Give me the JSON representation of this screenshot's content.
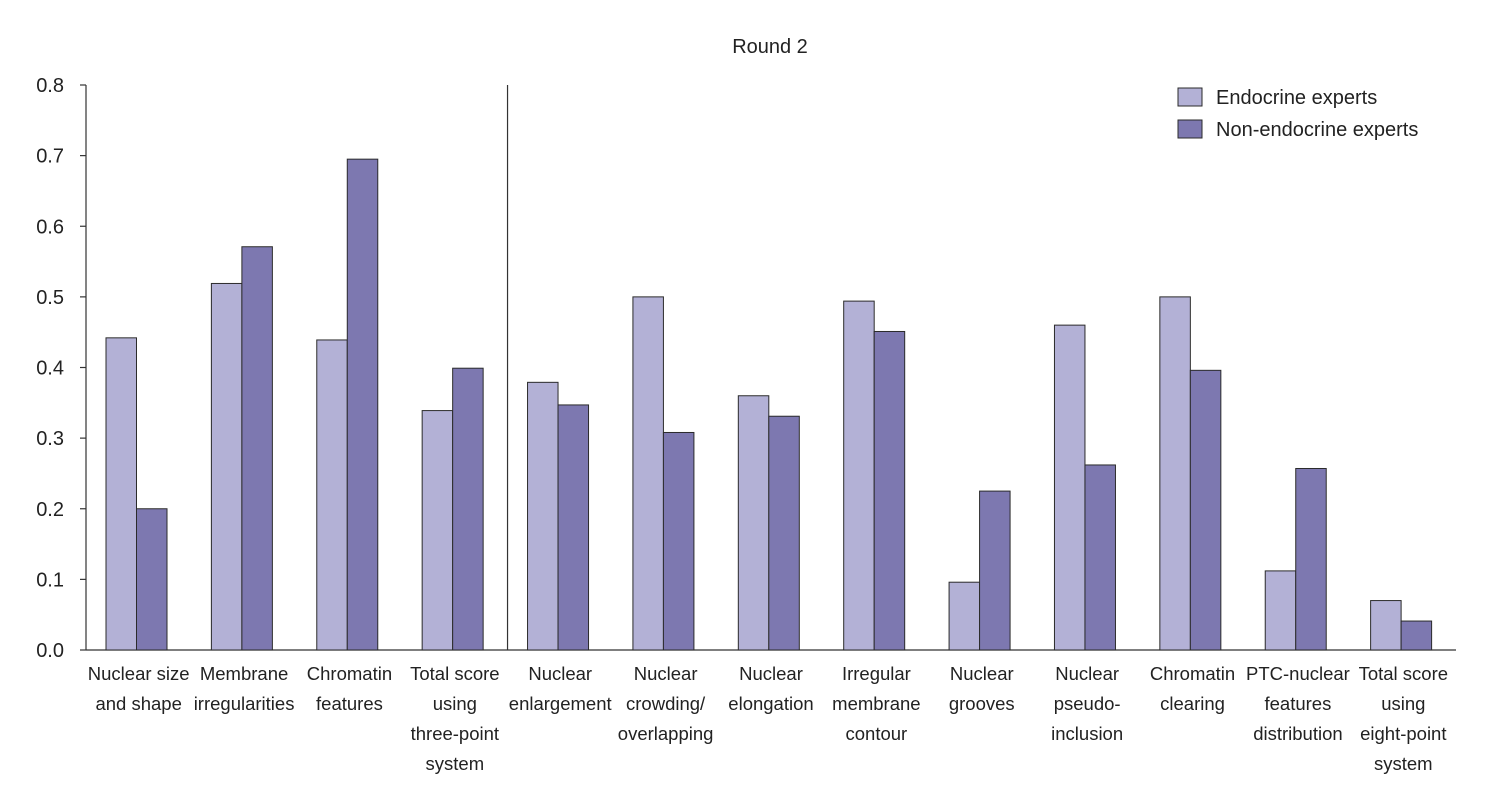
{
  "chart_data": {
    "type": "bar",
    "title": "Round 2",
    "xlabel": "",
    "ylabel": "",
    "ylim": [
      0,
      0.8
    ],
    "yticks": [
      "0.0",
      "0.1",
      "0.2",
      "0.3",
      "0.4",
      "0.5",
      "0.6",
      "0.7",
      "0.8"
    ],
    "ytick_values": [
      0,
      0.1,
      0.2,
      0.3,
      0.4,
      0.5,
      0.6,
      0.7,
      0.8
    ],
    "legend_position": "top-right",
    "divider_after_category_index": 3,
    "categories": [
      [
        "Nuclear size",
        "and shape"
      ],
      [
        "Membrane",
        "irregularities"
      ],
      [
        "Chromatin",
        "features"
      ],
      [
        "Total score",
        "using",
        "three-point",
        "system"
      ],
      [
        "Nuclear",
        "enlargement"
      ],
      [
        "Nuclear",
        "crowding/",
        "overlapping"
      ],
      [
        "Nuclear",
        "elongation"
      ],
      [
        "Irregular",
        "membrane",
        "contour"
      ],
      [
        "Nuclear",
        "grooves"
      ],
      [
        "Nuclear",
        "pseudo-",
        "inclusion"
      ],
      [
        "Chromatin",
        "clearing"
      ],
      [
        "PTC-nuclear",
        "features",
        "distribution"
      ],
      [
        "Total score",
        "using",
        "eight-point",
        "system"
      ]
    ],
    "series": [
      {
        "name": "Endocrine experts",
        "color": "#b3b1d6",
        "values": [
          0.442,
          0.519,
          0.439,
          0.339,
          0.379,
          0.5,
          0.36,
          0.494,
          0.096,
          0.46,
          0.5,
          0.112,
          0.07
        ]
      },
      {
        "name": "Non-endocrine experts",
        "color": "#7d78b0",
        "values": [
          0.2,
          0.571,
          0.695,
          0.399,
          0.347,
          0.308,
          0.331,
          0.451,
          0.225,
          0.262,
          0.396,
          0.257,
          0.041
        ]
      }
    ]
  }
}
